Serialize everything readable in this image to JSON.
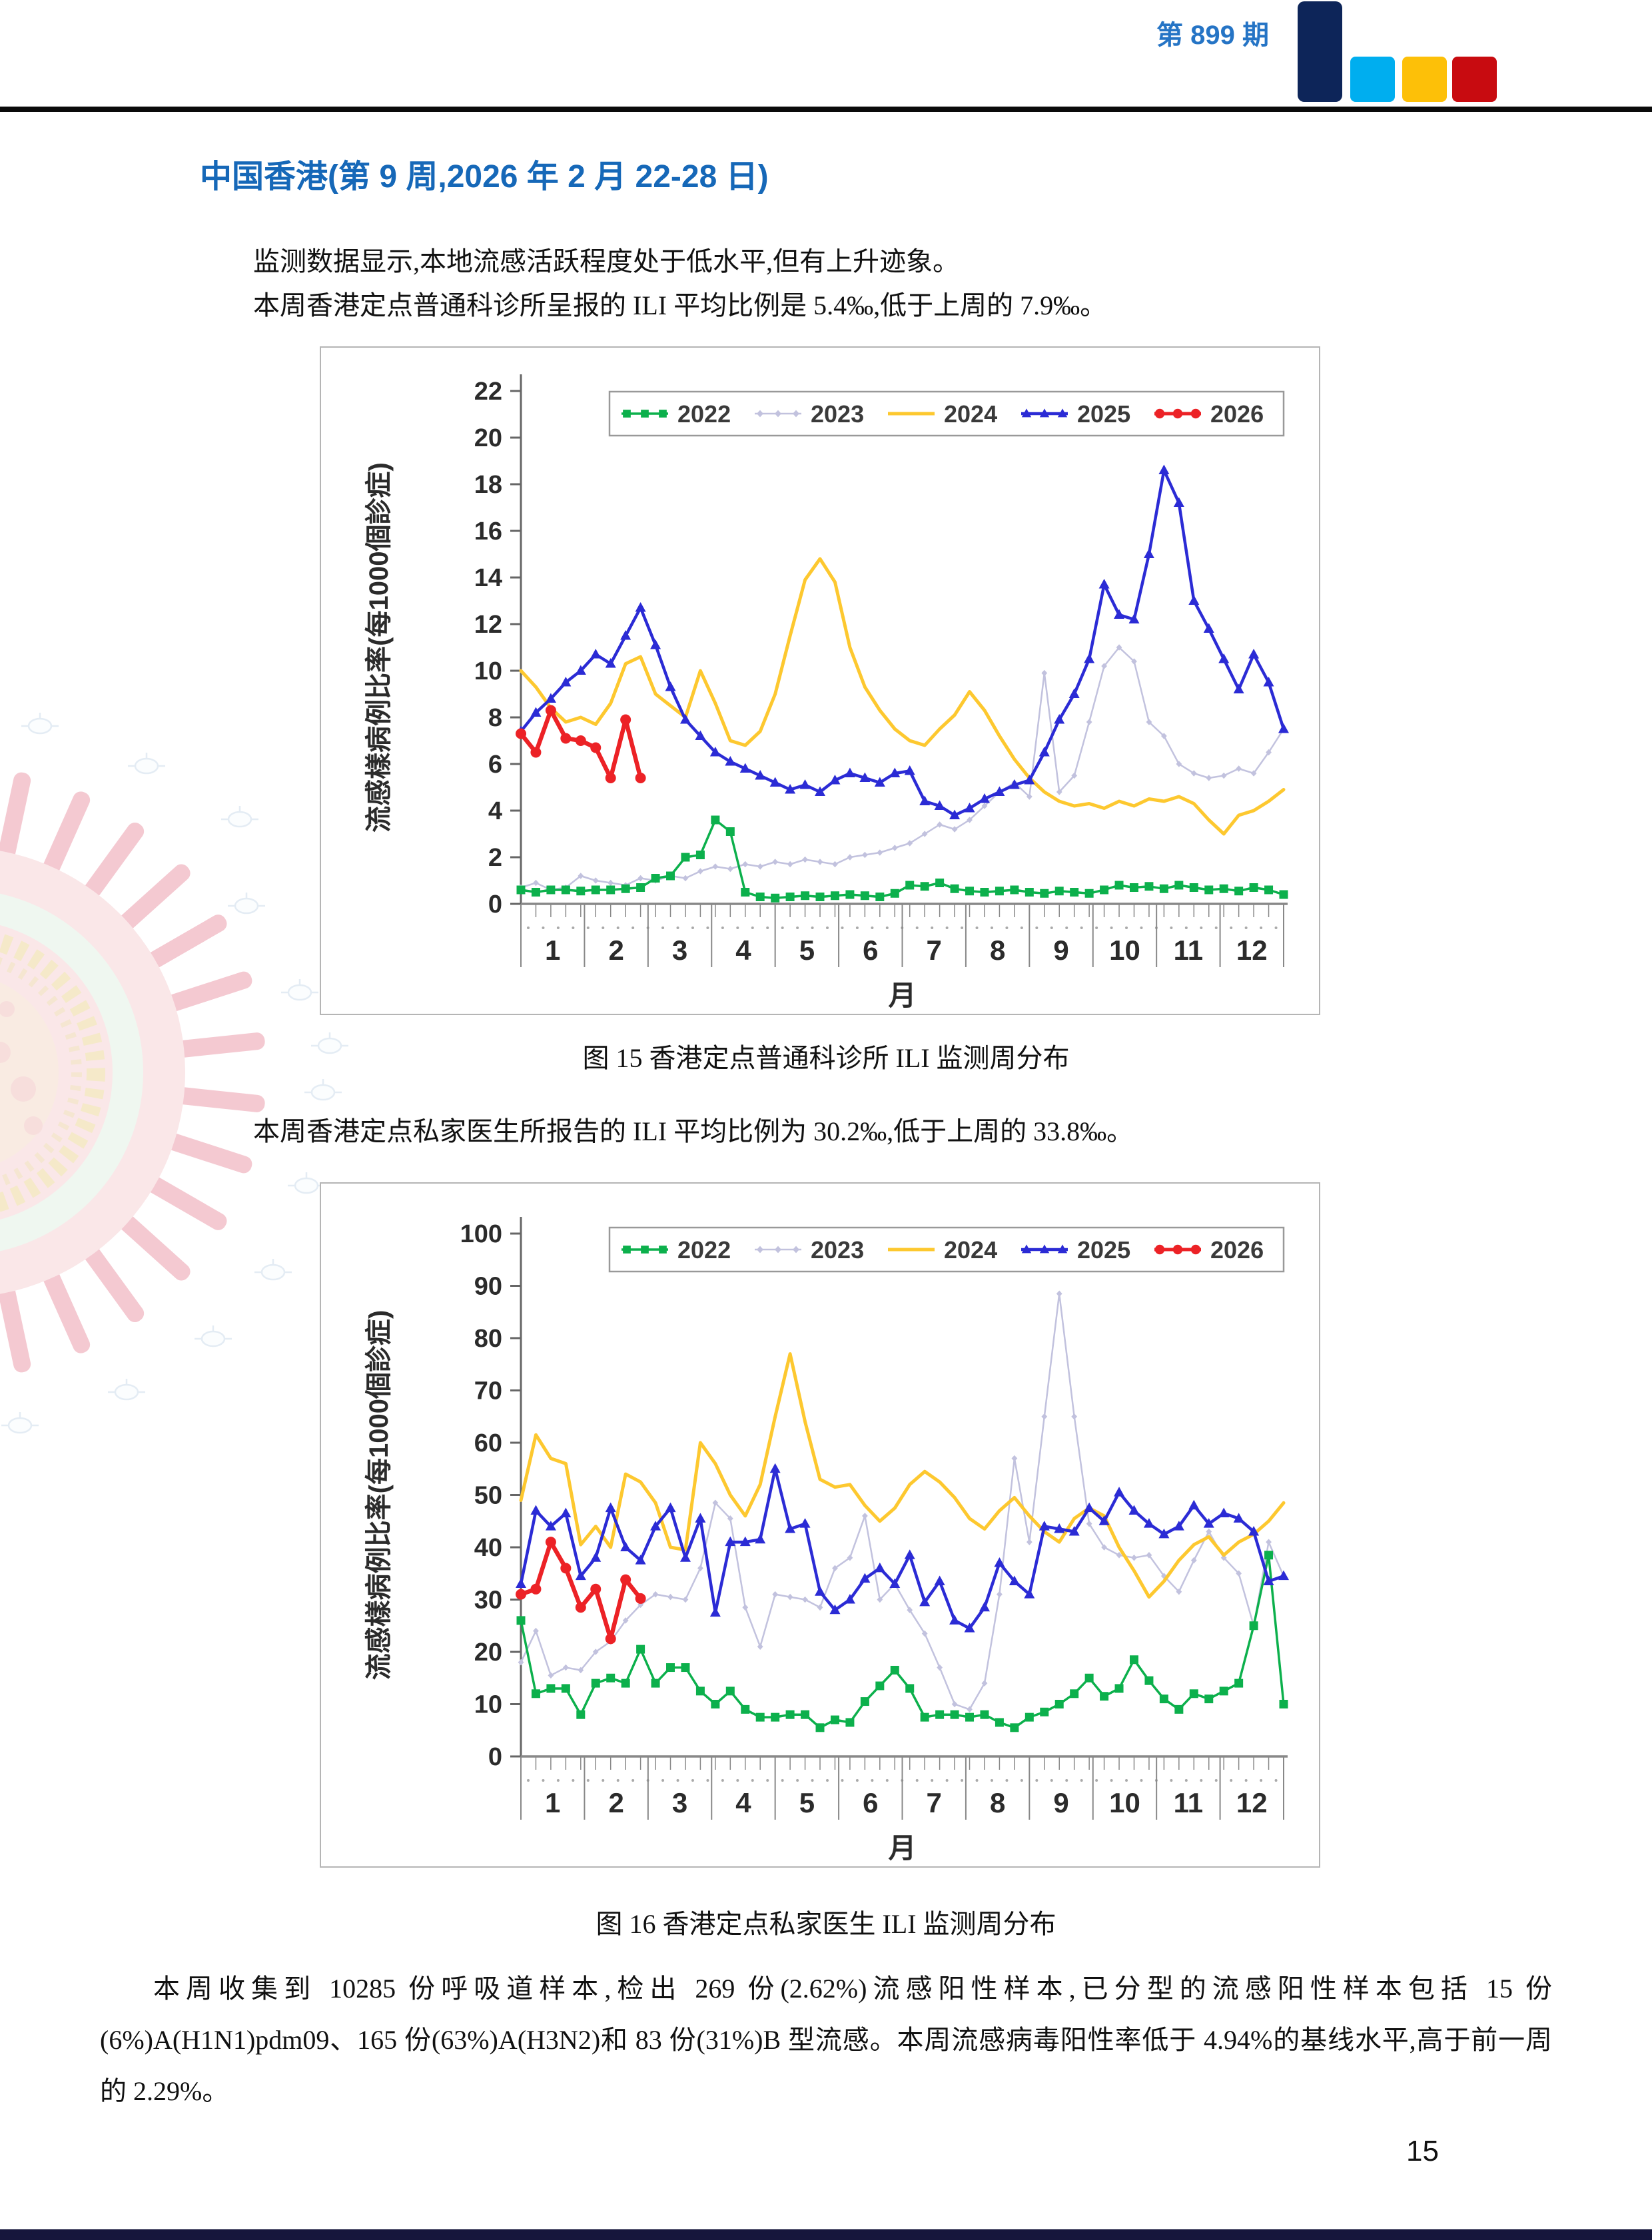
{
  "header": {
    "issue": "第 899 期"
  },
  "title": "中国香港(第 9 周,2026 年 2 月 22-28 日)",
  "paragraphs": {
    "p1": "监测数据显示,本地流感活跃程度处于低水平,但有上升迹象。",
    "p2": "本周香港定点普通科诊所呈报的 ILI 平均比例是 5.4‰,低于上周的 7.9‰。",
    "p3": "本周香港定点私家医生所报告的 ILI 平均比例为 30.2‰,低于上周的 33.8‰。",
    "p4": "本周收集到 10285 份呼吸道样本,检出 269 份(2.62%)流感阳性样本,已分型的流感阳性样本包括 15 份(6%)A(H1N1)pdm09、165 份(63%)A(H3N2)和 83 份(31%)B 型流感。本周流感病毒阳性率低于 4.94%的基线水平,高于前一周的 2.29%。"
  },
  "captions": {
    "fig15": "图 15  香港定点普通科诊所 ILI 监测周分布",
    "fig16": "图 16  香港定点私家医生 ILI 监测周分布"
  },
  "page_number": "15",
  "colors": {
    "title_blue": "#1668b8",
    "issue_blue": "#2574c5",
    "logo_navy": "#0d2559",
    "logo_lightblue": "#00aeef",
    "logo_yellow": "#fdc008",
    "logo_red": "#c80b10",
    "footer_bar": "#16163c"
  },
  "chart_data": [
    {
      "type": "line",
      "title": "香港定点普通科诊所 ILI 监测周分布",
      "ylabel": "流感樣病例比率(每1000個診症)",
      "xlabel": "月",
      "ylim": [
        0,
        22
      ],
      "ytick_step": 2,
      "x_months": [
        "1",
        "2",
        "3",
        "4",
        "5",
        "6",
        "7",
        "8",
        "9",
        "10",
        "11",
        "12"
      ],
      "x_unit": "week (1-52)",
      "grid": false,
      "legend_position": "top",
      "series": [
        {
          "name": "2022",
          "color": "#0cb04c",
          "marker": "square",
          "values": [
            0.6,
            0.5,
            0.6,
            0.6,
            0.55,
            0.6,
            0.6,
            0.65,
            0.7,
            1.1,
            1.2,
            2.0,
            2.1,
            3.6,
            3.1,
            0.5,
            0.3,
            0.25,
            0.3,
            0.35,
            0.3,
            0.35,
            0.4,
            0.35,
            0.3,
            0.45,
            0.8,
            0.75,
            0.9,
            0.65,
            0.55,
            0.5,
            0.55,
            0.6,
            0.5,
            0.45,
            0.55,
            0.5,
            0.45,
            0.6,
            0.8,
            0.7,
            0.75,
            0.65,
            0.8,
            0.7,
            0.6,
            0.65,
            0.55,
            0.7,
            0.6,
            0.4
          ]
        },
        {
          "name": "2023",
          "color": "#c2c2de",
          "marker": "diamond",
          "values": [
            0.7,
            0.9,
            0.6,
            0.7,
            1.2,
            1.0,
            0.9,
            0.8,
            1.1,
            1.0,
            1.2,
            1.1,
            1.4,
            1.6,
            1.5,
            1.7,
            1.6,
            1.8,
            1.7,
            1.9,
            1.8,
            1.7,
            2.0,
            2.1,
            2.2,
            2.4,
            2.6,
            3.0,
            3.4,
            3.2,
            3.6,
            4.2,
            4.8,
            5.2,
            4.6,
            9.9,
            4.8,
            5.5,
            7.8,
            10.2,
            11.0,
            10.4,
            7.8,
            7.2,
            6.0,
            5.6,
            5.4,
            5.5,
            5.8,
            5.6,
            6.5,
            7.5
          ]
        },
        {
          "name": "2024",
          "color": "#fdc82f",
          "marker": "none",
          "values": [
            10.0,
            9.3,
            8.4,
            7.8,
            8.0,
            7.7,
            8.6,
            10.3,
            10.6,
            9.0,
            8.5,
            8.0,
            10.0,
            8.6,
            7.0,
            6.8,
            7.4,
            9.0,
            11.5,
            13.9,
            14.8,
            13.8,
            11.0,
            9.3,
            8.3,
            7.5,
            7.0,
            6.8,
            7.5,
            8.1,
            9.1,
            8.3,
            7.2,
            6.2,
            5.4,
            4.8,
            4.4,
            4.2,
            4.3,
            4.1,
            4.4,
            4.2,
            4.5,
            4.4,
            4.6,
            4.3,
            3.6,
            3.0,
            3.8,
            4.0,
            4.4,
            4.9
          ]
        },
        {
          "name": "2025",
          "color": "#2b2bd5",
          "marker": "triangle",
          "values": [
            7.4,
            8.2,
            8.8,
            9.5,
            10.0,
            10.7,
            10.3,
            11.5,
            12.7,
            11.1,
            9.3,
            7.9,
            7.2,
            6.5,
            6.1,
            5.8,
            5.5,
            5.2,
            4.9,
            5.1,
            4.8,
            5.3,
            5.6,
            5.4,
            5.2,
            5.6,
            5.7,
            4.4,
            4.2,
            3.8,
            4.1,
            4.5,
            4.8,
            5.1,
            5.3,
            6.5,
            7.9,
            9.0,
            10.5,
            13.7,
            12.4,
            12.2,
            15.0,
            18.6,
            17.2,
            13.0,
            11.8,
            10.5,
            9.2,
            10.7,
            9.5,
            7.5
          ]
        },
        {
          "name": "2026",
          "color": "#ec2226",
          "marker": "circle",
          "values": [
            7.3,
            6.5,
            8.3,
            7.1,
            7.0,
            6.7,
            5.4,
            7.9,
            5.4
          ]
        }
      ]
    },
    {
      "type": "line",
      "title": "香港定点私家医生 ILI 监测周分布",
      "ylabel": "流感樣病例比率(每1000個診症)",
      "xlabel": "月",
      "ylim": [
        0,
        100
      ],
      "ytick_step": 10,
      "x_months": [
        "1",
        "2",
        "3",
        "4",
        "5",
        "6",
        "7",
        "8",
        "9",
        "10",
        "11",
        "12"
      ],
      "x_unit": "week (1-52)",
      "grid": false,
      "legend_position": "top",
      "series": [
        {
          "name": "2022",
          "color": "#0cb04c",
          "marker": "square",
          "values": [
            26,
            12,
            13,
            13,
            8,
            14,
            15,
            14,
            20.5,
            14,
            17,
            17,
            12.5,
            10,
            12.5,
            9,
            7.5,
            7.5,
            8,
            8,
            5.5,
            7,
            6.5,
            10.5,
            13.5,
            16.5,
            13,
            7.5,
            8,
            8,
            7.5,
            8,
            6.5,
            5.5,
            7.5,
            8.5,
            10,
            12,
            15,
            11.5,
            13,
            18.5,
            14.5,
            11,
            9,
            12,
            11,
            12.5,
            14,
            25,
            38.5,
            10
          ]
        },
        {
          "name": "2023",
          "color": "#c2c2de",
          "marker": "diamond",
          "values": [
            18,
            24,
            15.5,
            17,
            16.5,
            20,
            22,
            26,
            29,
            31,
            30.5,
            30,
            36,
            48.5,
            45.5,
            28.5,
            21,
            31,
            30.5,
            30,
            28.5,
            36,
            38,
            46,
            30,
            33,
            28,
            23.5,
            17,
            10,
            9,
            14,
            31,
            57,
            41,
            65,
            88.5,
            65,
            44.5,
            40,
            38.5,
            38,
            38.5,
            34.5,
            31.5,
            37.5,
            43,
            38,
            35,
            25,
            41,
            34.5
          ]
        },
        {
          "name": "2024",
          "color": "#fdc82f",
          "marker": "none",
          "values": [
            49,
            61.5,
            57,
            56,
            40.5,
            44,
            40,
            54,
            52.5,
            48.5,
            40,
            39.5,
            60,
            56,
            50,
            46,
            52,
            65,
            77,
            64,
            53,
            51.5,
            52,
            48,
            45,
            47.5,
            52,
            54.5,
            52.5,
            49.5,
            45.5,
            43.5,
            47,
            49.5,
            46,
            43,
            41,
            45.5,
            47.5,
            46,
            40,
            35.5,
            30.5,
            33.5,
            37.5,
            40.5,
            42,
            38.5,
            41,
            42.5,
            45,
            48.5
          ]
        },
        {
          "name": "2025",
          "color": "#2b2bd5",
          "marker": "triangle",
          "values": [
            33,
            47,
            44,
            46.5,
            34.5,
            38,
            47.5,
            40,
            37.5,
            44,
            47.5,
            38,
            45.5,
            27.5,
            41,
            41,
            41.5,
            55,
            43.5,
            44.5,
            31.5,
            28,
            30,
            34,
            36,
            33,
            38.5,
            29.5,
            33.5,
            26,
            24.5,
            28.5,
            37,
            33.5,
            31,
            44,
            43.5,
            43,
            47.5,
            45,
            50.5,
            47,
            44.5,
            42.5,
            44,
            48,
            44.5,
            46.5,
            45.5,
            43,
            33.5,
            34.5
          ]
        },
        {
          "name": "2026",
          "color": "#ec2226",
          "marker": "circle",
          "values": [
            31,
            32,
            41,
            36,
            28.5,
            32,
            22.5,
            33.8,
            30.2
          ]
        }
      ]
    }
  ]
}
